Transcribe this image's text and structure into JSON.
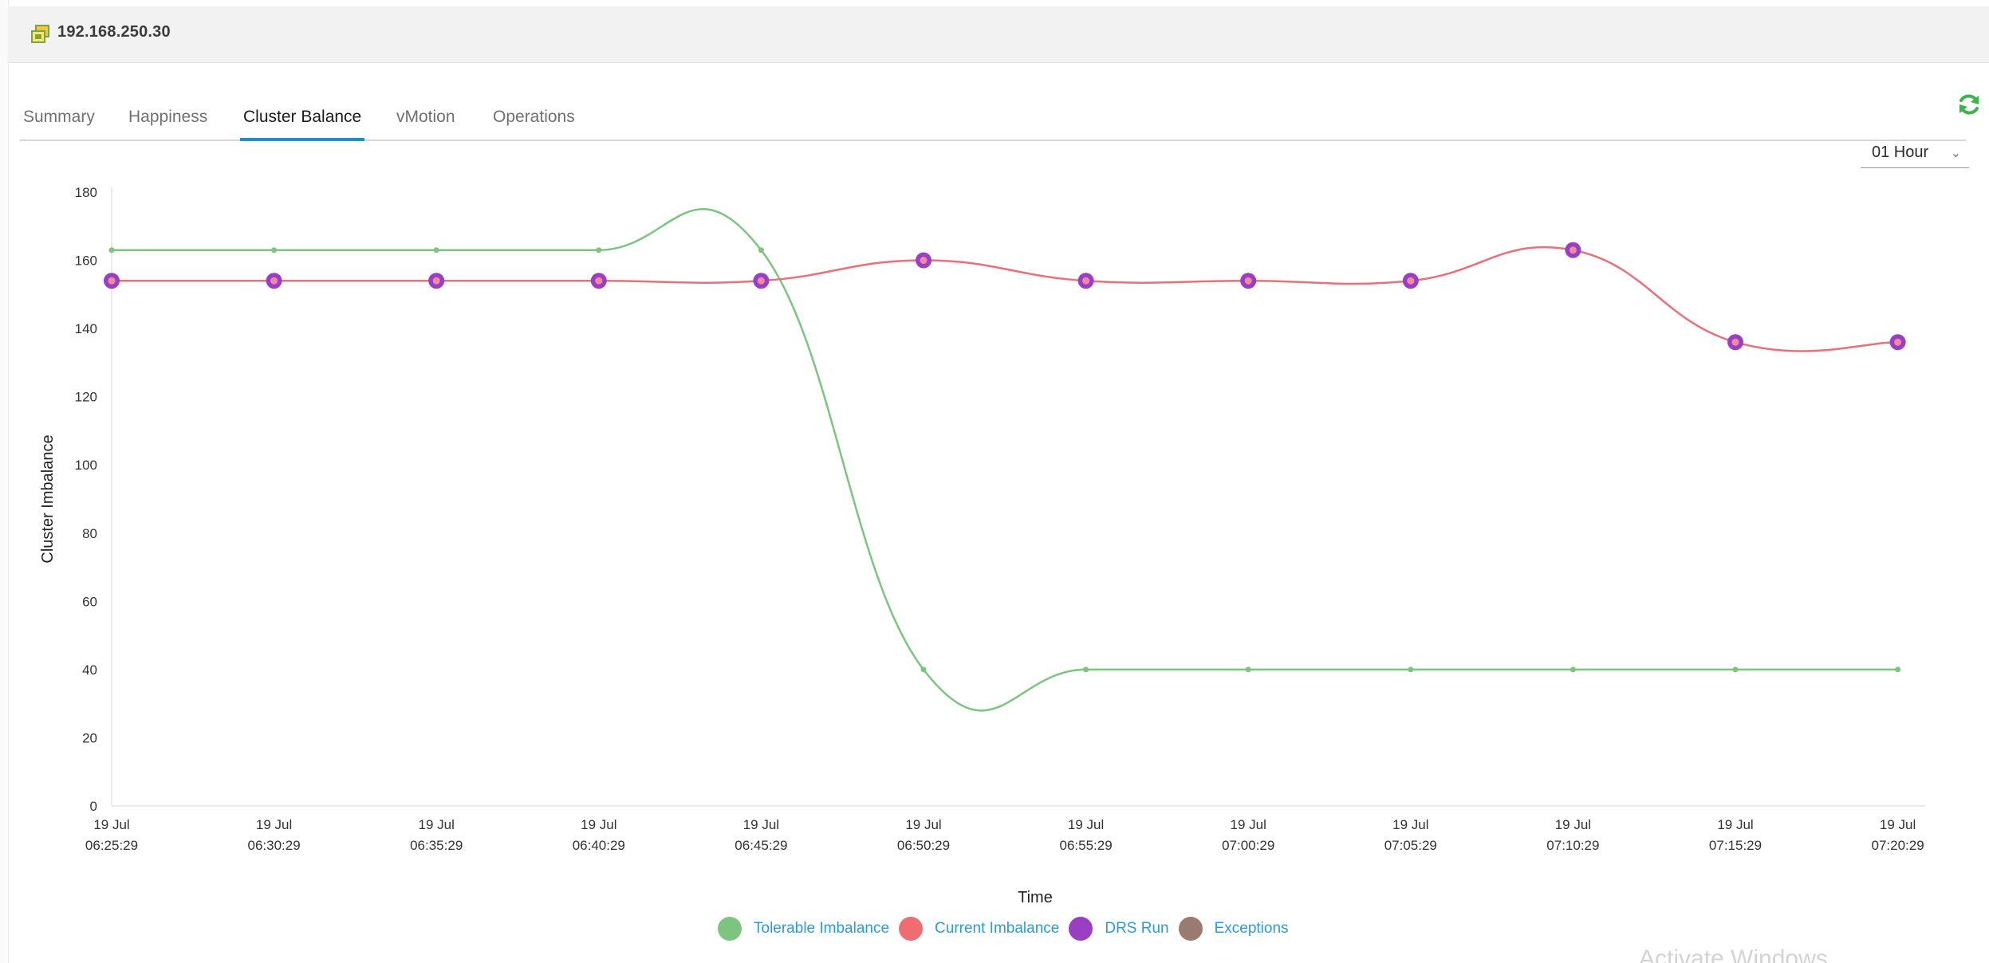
{
  "header": {
    "host": "192.168.250.30"
  },
  "tabs": [
    {
      "label": "Summary"
    },
    {
      "label": "Happiness"
    },
    {
      "label": "Cluster Balance",
      "active": true
    },
    {
      "label": "vMotion"
    },
    {
      "label": "Operations"
    }
  ],
  "controls": {
    "time_range": "01 Hour",
    "refresh_icon": "refresh-icon"
  },
  "colors": {
    "tolerable": "#7cc47f",
    "current": "#e8707a",
    "drs": "#9a3fc4",
    "exceptions": "#9b7a6f",
    "accent": "#1c8ed0",
    "legend_text": "#2b9bd8"
  },
  "legend": [
    {
      "label": "Tolerable Imbalance",
      "color": "#7cc47f"
    },
    {
      "label": "Current Imbalance",
      "color": "#ef6c73"
    },
    {
      "label": "DRS Run",
      "color": "#9a3fc4"
    },
    {
      "label": "Exceptions",
      "color": "#9b7a6f"
    }
  ],
  "chart_data": {
    "type": "line",
    "xlabel": "Time",
    "ylabel": "Cluster Imbalance",
    "ylim": [
      0,
      180
    ],
    "yticks": [
      0,
      20,
      40,
      60,
      80,
      100,
      120,
      140,
      160,
      180
    ],
    "categories": [
      [
        "19 Jul",
        "06:25:29"
      ],
      [
        "19 Jul",
        "06:30:29"
      ],
      [
        "19 Jul",
        "06:35:29"
      ],
      [
        "19 Jul",
        "06:40:29"
      ],
      [
        "19 Jul",
        "06:45:29"
      ],
      [
        "19 Jul",
        "06:50:29"
      ],
      [
        "19 Jul",
        "06:55:29"
      ],
      [
        "19 Jul",
        "07:00:29"
      ],
      [
        "19 Jul",
        "07:05:29"
      ],
      [
        "19 Jul",
        "07:10:29"
      ],
      [
        "19 Jul",
        "07:15:29"
      ],
      [
        "19 Jul",
        "07:20:29"
      ]
    ],
    "series": [
      {
        "name": "Tolerable Imbalance",
        "values": [
          163,
          163,
          163,
          163,
          163,
          40,
          40,
          40,
          40,
          40,
          40,
          40
        ]
      },
      {
        "name": "Current Imbalance",
        "values": [
          154,
          154,
          154,
          154,
          154,
          160,
          154,
          154,
          154,
          163,
          136,
          136
        ]
      }
    ],
    "drs_run_points": [
      0,
      1,
      2,
      3,
      4,
      5,
      6,
      7,
      8,
      9,
      10,
      11
    ],
    "grid": false,
    "legend_position": "bottom-center"
  },
  "overlay": {
    "watermark": "Activate Windows"
  }
}
